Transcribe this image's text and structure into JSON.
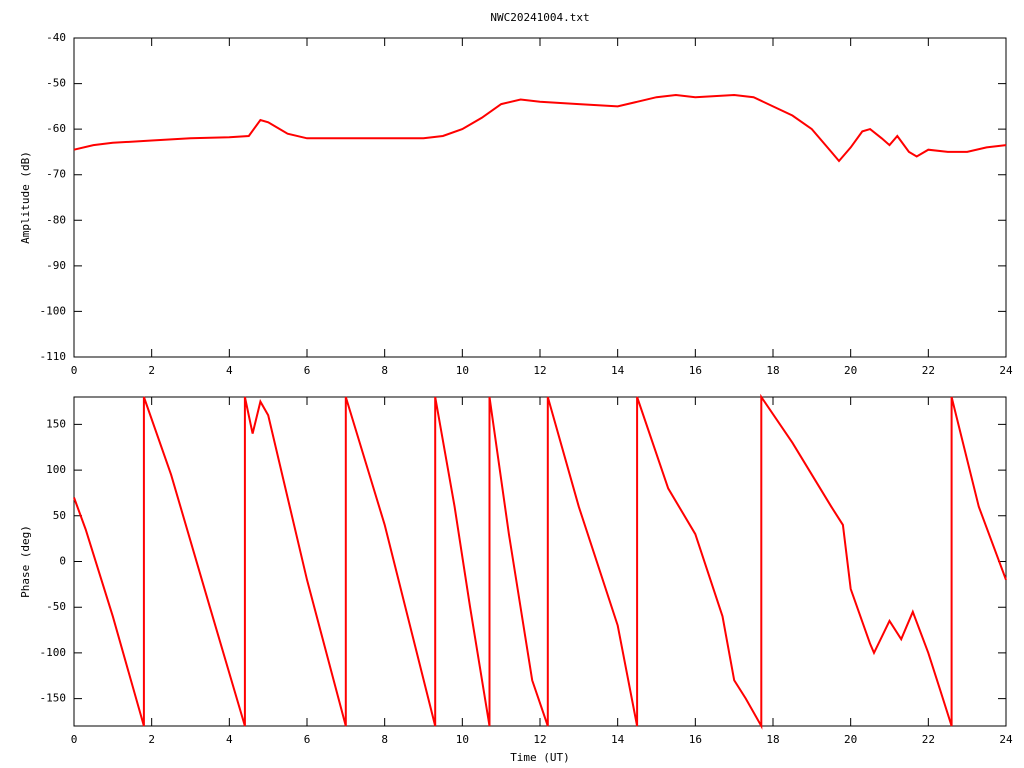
{
  "chart_data": [
    {
      "type": "line",
      "title": "NWC20241004.txt",
      "ylabel": "Amplitude (dB)",
      "x": [
        0,
        0.5,
        1,
        2,
        3,
        4,
        4.5,
        4.8,
        5,
        5.5,
        6,
        7,
        8,
        9,
        9.5,
        10,
        10.5,
        11,
        11.5,
        12,
        13,
        14,
        14.5,
        15,
        15.5,
        16,
        17,
        17.5,
        18,
        18.5,
        19,
        19.5,
        19.7,
        20,
        20.3,
        20.5,
        20.8,
        21,
        21.2,
        21.5,
        21.7,
        22,
        22.5,
        23,
        23.5,
        24
      ],
      "series": [
        {
          "color": "#ff0000",
          "values": [
            -64.5,
            -63.5,
            -63,
            -62.5,
            -62,
            -61.8,
            -61.5,
            -58,
            -58.5,
            -61,
            -62,
            -62,
            -62,
            -62,
            -61.5,
            -60,
            -57.5,
            -54.5,
            -53.5,
            -54,
            -54.5,
            -55,
            -54,
            -53,
            -52.5,
            -53,
            -52.5,
            -53,
            -55,
            -57,
            -60,
            -65,
            -67,
            -64,
            -60.5,
            -60,
            -62,
            -63.5,
            -61.5,
            -65,
            -66,
            -64.5,
            -65,
            -65,
            -64,
            -63.5
          ]
        }
      ],
      "xlim": [
        0,
        24
      ],
      "xticks": [
        0,
        2,
        4,
        6,
        8,
        10,
        12,
        14,
        16,
        18,
        20,
        22,
        24
      ],
      "ylim": [
        -110,
        -40
      ],
      "yticks": [
        -110,
        -100,
        -90,
        -80,
        -70,
        -60,
        -50,
        -40
      ],
      "grid": false
    },
    {
      "type": "line",
      "xlabel": "Time (UT)",
      "ylabel": "Phase (deg)",
      "x": [
        0,
        0.3,
        1,
        1.8,
        1.8,
        2.5,
        3.5,
        4.4,
        4.4,
        4.6,
        4.8,
        5,
        6,
        7,
        7,
        8,
        9.3,
        9.3,
        9.8,
        10.2,
        10.7,
        10.7,
        11.2,
        11.8,
        12.2,
        12.2,
        13,
        14,
        14.5,
        14.5,
        15.3,
        16,
        16.7,
        17,
        17.3,
        17.7,
        17.7,
        18.5,
        19.5,
        19.8,
        20,
        20.5,
        20.6,
        21,
        21.3,
        21.6,
        22,
        22.3,
        22.6,
        22.6,
        23.3,
        24
      ],
      "series": [
        {
          "color": "#ff0000",
          "values": [
            70,
            35,
            -60,
            -180,
            180,
            95,
            -50,
            -180,
            180,
            140,
            175,
            160,
            -20,
            -180,
            180,
            40,
            -180,
            180,
            60,
            -50,
            -180,
            180,
            30,
            -130,
            -180,
            180,
            60,
            -70,
            -180,
            180,
            80,
            30,
            -60,
            -130,
            -150,
            -180,
            180,
            130,
            60,
            40,
            -30,
            -90,
            -100,
            -65,
            -85,
            -55,
            -100,
            -140,
            -180,
            180,
            60,
            -20
          ]
        }
      ],
      "xlim": [
        0,
        24
      ],
      "xticks": [
        0,
        2,
        4,
        6,
        8,
        10,
        12,
        14,
        16,
        18,
        20,
        22,
        24
      ],
      "ylim": [
        -180,
        180
      ],
      "yticks": [
        -150,
        -100,
        -50,
        0,
        50,
        100,
        150
      ],
      "grid": false
    }
  ]
}
